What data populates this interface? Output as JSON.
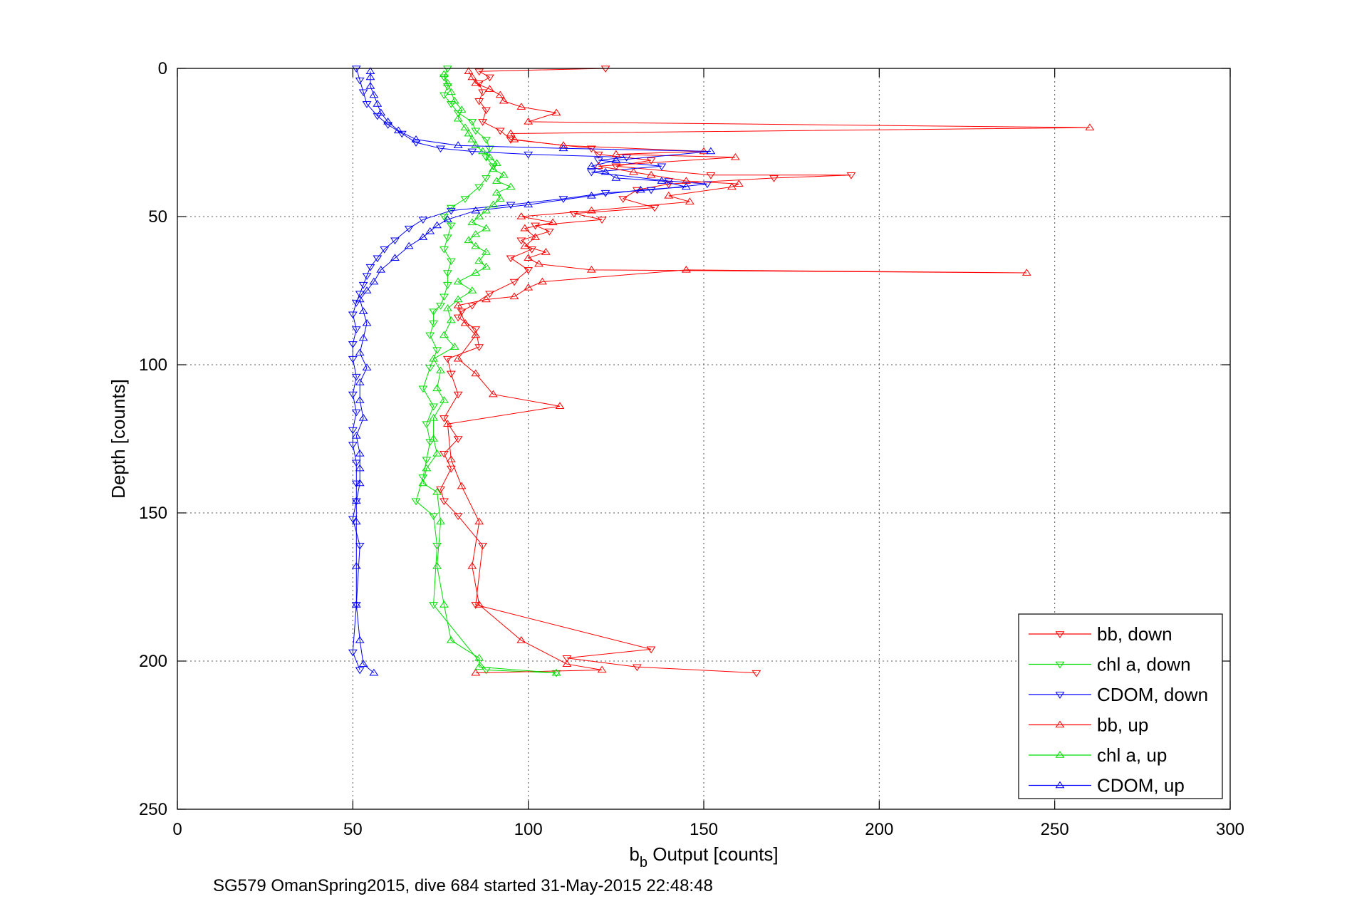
{
  "chart_data": {
    "type": "scatter",
    "title": "",
    "xlabel": "b",
    "xlabel_sub": "b",
    "xlabel_rest": " Output [counts]",
    "ylabel": "Depth [counts]",
    "xlim": [
      0,
      300
    ],
    "ylim": [
      250,
      0
    ],
    "y_reversed": true,
    "xticks": [
      0,
      50,
      100,
      150,
      200,
      250,
      300
    ],
    "yticks": [
      0,
      50,
      100,
      150,
      200,
      250
    ],
    "xtick_labels": [
      "0",
      "50",
      "100",
      "150",
      "200",
      "250",
      "300"
    ],
    "ytick_labels": [
      "0",
      "50",
      "100",
      "150",
      "200",
      "250"
    ],
    "grid": true,
    "legend_position": "bottom-right",
    "caption": "SG579 OmanSpring2015, dive 684 started 31-May-2015 22:48:48",
    "series": [
      {
        "name": "bb, down",
        "color": "#ff0000",
        "marker": "triangle-down",
        "line": true,
        "points": [
          [
            122,
            0
          ],
          [
            86,
            1
          ],
          [
            89,
            3
          ],
          [
            86,
            5
          ],
          [
            87,
            8
          ],
          [
            86,
            11
          ],
          [
            88,
            14
          ],
          [
            87,
            18
          ],
          [
            92,
            21
          ],
          [
            95,
            24
          ],
          [
            118,
            27
          ],
          [
            120,
            29
          ],
          [
            135,
            31
          ],
          [
            125,
            33
          ],
          [
            152,
            36
          ],
          [
            192,
            36
          ],
          [
            170,
            37
          ],
          [
            140,
            39
          ],
          [
            131,
            41
          ],
          [
            127,
            44
          ],
          [
            136,
            47
          ],
          [
            113,
            49
          ],
          [
            121,
            51
          ],
          [
            102,
            53
          ],
          [
            106,
            55
          ],
          [
            98,
            58
          ],
          [
            101,
            61
          ],
          [
            95,
            64
          ],
          [
            100,
            68
          ],
          [
            96,
            72
          ],
          [
            89,
            76
          ],
          [
            84,
            80
          ],
          [
            81,
            82
          ],
          [
            80,
            84
          ],
          [
            85,
            88
          ],
          [
            86,
            94
          ],
          [
            77,
            98
          ],
          [
            78,
            103
          ],
          [
            80,
            110
          ],
          [
            76,
            118
          ],
          [
            80,
            125
          ],
          [
            76,
            130
          ],
          [
            78,
            135
          ],
          [
            75,
            142
          ],
          [
            76,
            146
          ],
          [
            80,
            151
          ],
          [
            87,
            161
          ],
          [
            85,
            181
          ],
          [
            135,
            196
          ],
          [
            111,
            199
          ],
          [
            131,
            202
          ],
          [
            165,
            204
          ]
        ]
      },
      {
        "name": "chl a, down",
        "color": "#00dd00",
        "marker": "triangle-down",
        "line": true,
        "points": [
          [
            77,
            0
          ],
          [
            76,
            3
          ],
          [
            77,
            6
          ],
          [
            76,
            9
          ],
          [
            78,
            12
          ],
          [
            80,
            15
          ],
          [
            84,
            18
          ],
          [
            85,
            21
          ],
          [
            88,
            24
          ],
          [
            89,
            27
          ],
          [
            88,
            30
          ],
          [
            90,
            33
          ],
          [
            88,
            37
          ],
          [
            86,
            40
          ],
          [
            82,
            44
          ],
          [
            78,
            47
          ],
          [
            76,
            50
          ],
          [
            78,
            53
          ],
          [
            77,
            57
          ],
          [
            76,
            61
          ],
          [
            78,
            65
          ],
          [
            77,
            69
          ],
          [
            77,
            73
          ],
          [
            76,
            77
          ],
          [
            75,
            80
          ],
          [
            73,
            82
          ],
          [
            73,
            86
          ],
          [
            72,
            90
          ],
          [
            74,
            95
          ],
          [
            72,
            101
          ],
          [
            70,
            108
          ],
          [
            73,
            114
          ],
          [
            71,
            120
          ],
          [
            72,
            126
          ],
          [
            71,
            132
          ],
          [
            70,
            138
          ],
          [
            68,
            146
          ],
          [
            73,
            151
          ],
          [
            74,
            161
          ],
          [
            73,
            181
          ],
          [
            88,
            203
          ],
          [
            108,
            204
          ]
        ]
      },
      {
        "name": "CDOM, down",
        "color": "#0000ff",
        "marker": "triangle-down",
        "line": true,
        "points": [
          [
            51,
            0
          ],
          [
            52,
            4
          ],
          [
            53,
            8
          ],
          [
            54,
            12
          ],
          [
            57,
            16
          ],
          [
            60,
            19
          ],
          [
            64,
            22
          ],
          [
            68,
            25
          ],
          [
            75,
            27
          ],
          [
            84,
            28
          ],
          [
            100,
            29
          ],
          [
            128,
            30
          ],
          [
            120,
            31
          ],
          [
            138,
            33
          ],
          [
            118,
            35
          ],
          [
            140,
            38
          ],
          [
            151,
            39
          ],
          [
            135,
            41
          ],
          [
            122,
            42
          ],
          [
            110,
            44
          ],
          [
            95,
            46
          ],
          [
            78,
            48
          ],
          [
            70,
            51
          ],
          [
            66,
            54
          ],
          [
            62,
            58
          ],
          [
            59,
            61
          ],
          [
            57,
            64
          ],
          [
            55,
            67
          ],
          [
            54,
            70
          ],
          [
            53,
            73
          ],
          [
            52,
            76
          ],
          [
            51,
            79
          ],
          [
            50,
            83
          ],
          [
            51,
            88
          ],
          [
            50,
            93
          ],
          [
            50,
            98
          ],
          [
            51,
            104
          ],
          [
            50,
            110
          ],
          [
            51,
            116
          ],
          [
            50,
            122
          ],
          [
            50,
            127
          ],
          [
            51,
            133
          ],
          [
            51,
            140
          ],
          [
            51,
            146
          ],
          [
            50,
            152
          ],
          [
            52,
            161
          ],
          [
            51,
            181
          ],
          [
            50,
            197
          ],
          [
            52,
            203
          ]
        ]
      },
      {
        "name": "bb, up",
        "color": "#ff0000",
        "marker": "triangle-up",
        "line": true,
        "points": [
          [
            85,
            204
          ],
          [
            121,
            203
          ],
          [
            111,
            201
          ],
          [
            98,
            193
          ],
          [
            86,
            181
          ],
          [
            84,
            168
          ],
          [
            86,
            153
          ],
          [
            81,
            141
          ],
          [
            78,
            132
          ],
          [
            77,
            120
          ],
          [
            109,
            114
          ],
          [
            90,
            110
          ],
          [
            85,
            103
          ],
          [
            80,
            98
          ],
          [
            85,
            90
          ],
          [
            82,
            86
          ],
          [
            80,
            80
          ],
          [
            88,
            78
          ],
          [
            96,
            77
          ],
          [
            100,
            74
          ],
          [
            104,
            72
          ],
          [
            145,
            68
          ],
          [
            242,
            69
          ],
          [
            118,
            68
          ],
          [
            103,
            66
          ],
          [
            100,
            64
          ],
          [
            105,
            62
          ],
          [
            99,
            60
          ],
          [
            102,
            57
          ],
          [
            99,
            54
          ],
          [
            107,
            52
          ],
          [
            98,
            50
          ],
          [
            118,
            48
          ],
          [
            146,
            45
          ],
          [
            140,
            43
          ],
          [
            158,
            40
          ],
          [
            160,
            39
          ],
          [
            145,
            38
          ],
          [
            135,
            36
          ],
          [
            130,
            35
          ],
          [
            120,
            33
          ],
          [
            159,
            30
          ],
          [
            125,
            29
          ],
          [
            150,
            28
          ],
          [
            110,
            26
          ],
          [
            96,
            24
          ],
          [
            95,
            22
          ],
          [
            260,
            20
          ],
          [
            100,
            18
          ],
          [
            108,
            15
          ],
          [
            98,
            13
          ],
          [
            93,
            11
          ],
          [
            92,
            9
          ],
          [
            89,
            7
          ],
          [
            85,
            5
          ],
          [
            84,
            3
          ],
          [
            83,
            1
          ]
        ]
      },
      {
        "name": "chl a, up",
        "color": "#00dd00",
        "marker": "triangle-up",
        "line": true,
        "points": [
          [
            108,
            204
          ],
          [
            86,
            202
          ],
          [
            86,
            199
          ],
          [
            78,
            193
          ],
          [
            76,
            181
          ],
          [
            74,
            168
          ],
          [
            75,
            153
          ],
          [
            74,
            143
          ],
          [
            70,
            140
          ],
          [
            71,
            135
          ],
          [
            74,
            130
          ],
          [
            73,
            125
          ],
          [
            73,
            118
          ],
          [
            76,
            112
          ],
          [
            74,
            108
          ],
          [
            75,
            102
          ],
          [
            73,
            98
          ],
          [
            79,
            94
          ],
          [
            76,
            90
          ],
          [
            78,
            85
          ],
          [
            77,
            81
          ],
          [
            80,
            78
          ],
          [
            84,
            75
          ],
          [
            80,
            72
          ],
          [
            85,
            69
          ],
          [
            88,
            67
          ],
          [
            86,
            65
          ],
          [
            88,
            62
          ],
          [
            85,
            60
          ],
          [
            83,
            58
          ],
          [
            85,
            56
          ],
          [
            88,
            54
          ],
          [
            84,
            52
          ],
          [
            86,
            50
          ],
          [
            88,
            48
          ],
          [
            90,
            46
          ],
          [
            92,
            44
          ],
          [
            91,
            42
          ],
          [
            95,
            40
          ],
          [
            91,
            38
          ],
          [
            93,
            36
          ],
          [
            90,
            34
          ],
          [
            91,
            32
          ],
          [
            89,
            30
          ],
          [
            87,
            28
          ],
          [
            85,
            26
          ],
          [
            84,
            24
          ],
          [
            83,
            22
          ],
          [
            82,
            20
          ],
          [
            80,
            17
          ],
          [
            81,
            14
          ],
          [
            79,
            11
          ],
          [
            78,
            8
          ],
          [
            77,
            5
          ],
          [
            76,
            2
          ]
        ]
      },
      {
        "name": "CDOM, up",
        "color": "#0000ff",
        "marker": "triangle-up",
        "line": true,
        "points": [
          [
            56,
            204
          ],
          [
            53,
            201
          ],
          [
            52,
            193
          ],
          [
            51,
            181
          ],
          [
            51,
            168
          ],
          [
            51,
            153
          ],
          [
            51,
            146
          ],
          [
            52,
            140
          ],
          [
            52,
            135
          ],
          [
            52,
            130
          ],
          [
            51,
            124
          ],
          [
            53,
            118
          ],
          [
            52,
            112
          ],
          [
            52,
            106
          ],
          [
            54,
            101
          ],
          [
            52,
            96
          ],
          [
            53,
            91
          ],
          [
            54,
            86
          ],
          [
            53,
            82
          ],
          [
            52,
            78
          ],
          [
            54,
            75
          ],
          [
            56,
            72
          ],
          [
            58,
            68
          ],
          [
            62,
            64
          ],
          [
            66,
            60
          ],
          [
            70,
            57
          ],
          [
            72,
            55
          ],
          [
            74,
            53
          ],
          [
            77,
            51
          ],
          [
            85,
            48
          ],
          [
            100,
            46
          ],
          [
            118,
            43
          ],
          [
            132,
            41
          ],
          [
            145,
            40
          ],
          [
            138,
            38
          ],
          [
            125,
            37
          ],
          [
            122,
            35
          ],
          [
            118,
            33
          ],
          [
            125,
            31
          ],
          [
            152,
            28
          ],
          [
            110,
            27
          ],
          [
            80,
            26
          ],
          [
            68,
            24
          ],
          [
            63,
            21
          ],
          [
            60,
            18
          ],
          [
            58,
            15
          ],
          [
            57,
            12
          ],
          [
            56,
            9
          ],
          [
            55,
            6
          ],
          [
            55,
            3
          ],
          [
            55,
            1
          ]
        ]
      }
    ]
  }
}
